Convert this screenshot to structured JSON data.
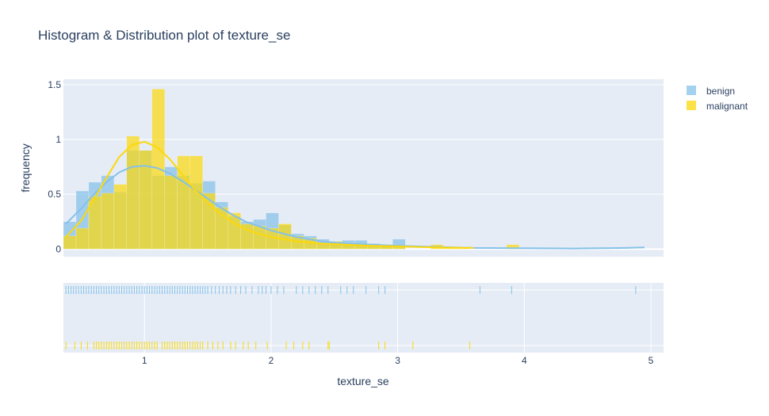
{
  "chart_data": {
    "type": "histogram",
    "title": "Histogram & Distribution plot of texture_se",
    "xlabel": "texture_se",
    "ylabel": "frequency",
    "xlim": [
      0.36,
      5.1
    ],
    "ylim": [
      -0.07,
      1.55
    ],
    "x_ticks": [
      "1",
      "2",
      "3",
      "4",
      "5"
    ],
    "x_tick_values": [
      1,
      2,
      3,
      4,
      5
    ],
    "y_ticks": [
      "0",
      "0.5",
      "1",
      "1.5"
    ],
    "y_tick_values": [
      0,
      0.5,
      1,
      1.5
    ],
    "grid": true,
    "legend_placement": "top-right",
    "series": [
      {
        "name": "benign",
        "color": "#85c1e9",
        "bin_start": 0.36,
        "bin_width": 0.1,
        "counts": [
          0.25,
          0.53,
          0.61,
          0.67,
          0.52,
          0.9,
          0.9,
          0.67,
          0.75,
          0.67,
          0.6,
          0.62,
          0.43,
          0.3,
          0.25,
          0.27,
          0.33,
          0.22,
          0.14,
          0.12,
          0.09,
          0.07,
          0.08,
          0.08,
          0.05,
          0.04,
          0.09,
          0.0,
          0.0,
          0.0,
          0.0,
          0.0,
          0.0,
          0.0,
          0.0,
          0.0,
          0.0,
          0.0,
          0.0,
          0.0,
          0.0,
          0.0,
          0.0,
          0.0,
          0.0,
          0.0
        ],
        "kde_x": [
          0.38,
          0.5,
          0.6,
          0.7,
          0.8,
          0.9,
          1.0,
          1.1,
          1.2,
          1.3,
          1.4,
          1.5,
          1.6,
          1.7,
          1.8,
          1.9,
          2.0,
          2.2,
          2.4,
          2.6,
          2.8,
          3.0,
          3.3,
          3.6,
          4.0,
          4.4,
          4.8,
          4.95
        ],
        "kde_y": [
          0.23,
          0.37,
          0.5,
          0.61,
          0.7,
          0.75,
          0.76,
          0.74,
          0.69,
          0.62,
          0.54,
          0.46,
          0.38,
          0.31,
          0.25,
          0.21,
          0.17,
          0.11,
          0.07,
          0.05,
          0.04,
          0.03,
          0.02,
          0.01,
          0.008,
          0.005,
          0.01,
          0.015
        ],
        "rug": [
          0.38,
          0.4,
          0.42,
          0.44,
          0.46,
          0.48,
          0.5,
          0.52,
          0.54,
          0.56,
          0.58,
          0.6,
          0.62,
          0.64,
          0.66,
          0.68,
          0.7,
          0.72,
          0.74,
          0.76,
          0.78,
          0.8,
          0.82,
          0.84,
          0.86,
          0.88,
          0.9,
          0.92,
          0.94,
          0.96,
          0.98,
          1.0,
          1.02,
          1.04,
          1.06,
          1.08,
          1.1,
          1.12,
          1.14,
          1.16,
          1.18,
          1.2,
          1.22,
          1.24,
          1.26,
          1.28,
          1.3,
          1.32,
          1.34,
          1.36,
          1.38,
          1.4,
          1.42,
          1.44,
          1.46,
          1.48,
          1.5,
          1.53,
          1.56,
          1.59,
          1.62,
          1.65,
          1.68,
          1.72,
          1.76,
          1.8,
          1.85,
          1.9,
          1.93,
          1.96,
          2.0,
          2.05,
          2.1,
          2.2,
          2.25,
          2.3,
          2.35,
          2.4,
          2.45,
          2.55,
          2.6,
          2.65,
          2.75,
          2.85,
          2.9,
          3.65,
          3.9,
          4.88
        ]
      },
      {
        "name": "malignant",
        "color": "#fcd80a",
        "bin_start": 0.36,
        "bin_width": 0.1,
        "counts": [
          0.12,
          0.19,
          0.48,
          0.51,
          0.59,
          1.03,
          0.9,
          1.46,
          0.67,
          0.85,
          0.85,
          0.51,
          0.38,
          0.33,
          0.23,
          0.21,
          0.19,
          0.23,
          0.12,
          0.1,
          0.05,
          0.07,
          0.04,
          0.04,
          0.04,
          0.04,
          0.03,
          0.0,
          0.0,
          0.04,
          0.02,
          0.01,
          0.0,
          0.0,
          0.0,
          0.04,
          0.0,
          0.0,
          0.0,
          0.0,
          0.0,
          0.0,
          0.0,
          0.0,
          0.0,
          0.0
        ],
        "kde_x": [
          0.38,
          0.5,
          0.6,
          0.7,
          0.8,
          0.9,
          1.0,
          1.1,
          1.2,
          1.3,
          1.4,
          1.5,
          1.6,
          1.7,
          1.8,
          1.9,
          2.0,
          2.2,
          2.4,
          2.6,
          2.8,
          3.0,
          3.3,
          3.6
        ],
        "kde_y": [
          0.11,
          0.26,
          0.45,
          0.65,
          0.84,
          0.95,
          0.98,
          0.93,
          0.82,
          0.68,
          0.54,
          0.42,
          0.32,
          0.24,
          0.18,
          0.14,
          0.11,
          0.07,
          0.05,
          0.04,
          0.03,
          0.025,
          0.015,
          0.01
        ],
        "rug": [
          0.38,
          0.45,
          0.5,
          0.55,
          0.6,
          0.62,
          0.64,
          0.66,
          0.68,
          0.7,
          0.72,
          0.74,
          0.76,
          0.78,
          0.8,
          0.82,
          0.84,
          0.86,
          0.88,
          0.9,
          0.92,
          0.94,
          0.96,
          0.98,
          1.0,
          1.02,
          1.04,
          1.06,
          1.08,
          1.1,
          1.14,
          1.16,
          1.18,
          1.2,
          1.22,
          1.24,
          1.26,
          1.28,
          1.3,
          1.32,
          1.34,
          1.36,
          1.38,
          1.4,
          1.42,
          1.44,
          1.46,
          1.5,
          1.54,
          1.58,
          1.62,
          1.68,
          1.72,
          1.78,
          1.82,
          1.88,
          1.97,
          2.12,
          2.18,
          2.25,
          2.3,
          2.45,
          2.46,
          2.85,
          2.9,
          3.12,
          3.57
        ]
      }
    ]
  }
}
